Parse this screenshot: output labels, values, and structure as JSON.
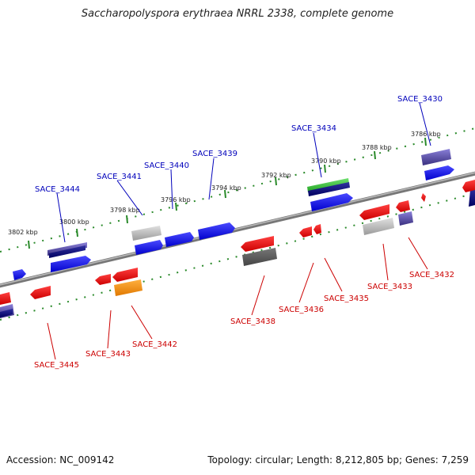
{
  "title": "Saccharopolyspora erythraea NRRL 2338, complete genome",
  "footer": {
    "accession": "Accession: NC_009142",
    "stats": "Topology: circular; Length: 8,212,805 bp; Genes: 7,259"
  },
  "kbp_marks": [
    "3802 kbp",
    "3800 kbp",
    "3798 kbp",
    "3796 kbp",
    "3794 kbp",
    "3792 kbp",
    "3790 kbp",
    "3788 kbp",
    "3786 kbp"
  ],
  "top_labels": [
    "SACE_3444",
    "SACE_3441",
    "SACE_3440",
    "SACE_3439",
    "SACE_3434",
    "SACE_3430"
  ],
  "bottom_labels": [
    "SACE_3445",
    "SACE_3443",
    "SACE_3442",
    "SACE_3438",
    "SACE_3436",
    "SACE_3435",
    "SACE_3433",
    "SACE_3432"
  ],
  "colors": {
    "forward": "#1010ee",
    "reverse": "#ee1010",
    "backbone": "#888888",
    "ticks": "#2a8a2a",
    "top_label": "#0000bb",
    "bottom_label": "#cc0000"
  }
}
